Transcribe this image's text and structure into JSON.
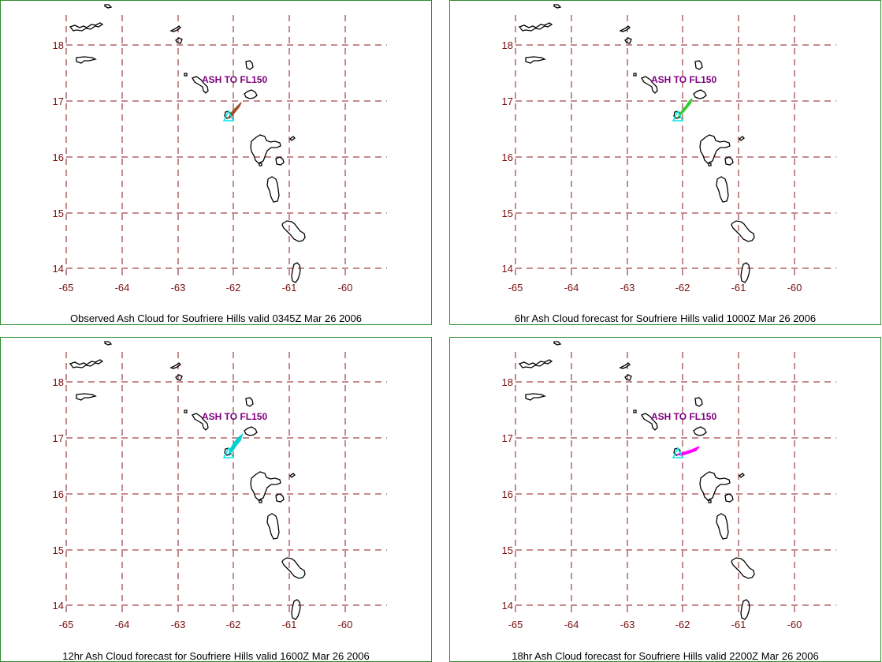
{
  "panels": [
    {
      "id": "obs",
      "caption": "Observed Ash Cloud for Soufriere  Hills valid 0345Z Mar 26 2006",
      "plume_color": "#a0522d"
    },
    {
      "id": "f6",
      "caption": "6hr Ash Cloud forecast for Soufriere  Hills valid 1000Z Mar 26 2006",
      "plume_color": "#32cd32"
    },
    {
      "id": "f12",
      "caption": "12hr Ash Cloud forecast for Soufriere  Hills valid 1600Z Mar 26 2006",
      "plume_color": "#00d0d0"
    },
    {
      "id": "f18",
      "caption": "18hr Ash Cloud forecast for Soufriere  Hills valid 2200Z Mar 26 2006",
      "plume_color": "#ff00ff"
    }
  ],
  "map": {
    "ash_label": "ASH TO FL150",
    "latitudes": [
      "18",
      "17",
      "16",
      "15",
      "14"
    ],
    "longitudes": [
      "-65",
      "-64",
      "-63",
      "-62",
      "-61",
      "-60"
    ],
    "vent_marker_color": "#00e5e5"
  }
}
